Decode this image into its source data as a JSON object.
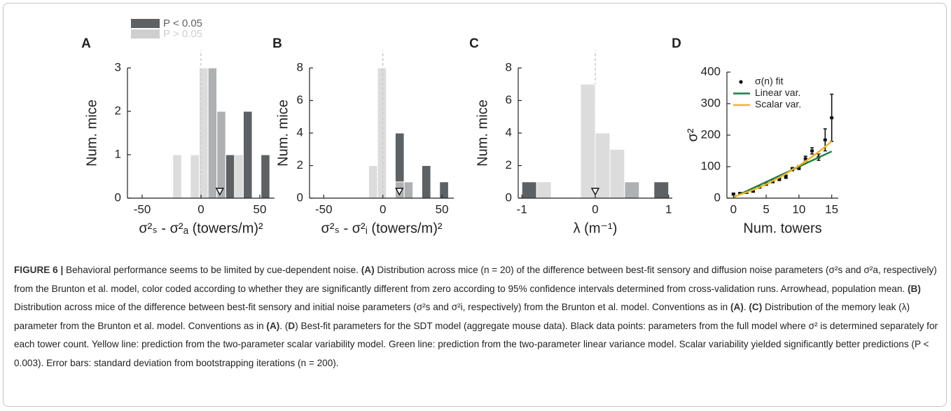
{
  "chart_data": [
    {
      "type": "histogram",
      "label": "A",
      "xlabel": "σ²ₛ - σ²ₐ (towers/m)²",
      "ylabel": "Num. mice",
      "bins": [
        -24,
        -16.5,
        -9,
        -1.5,
        6,
        13.5,
        21,
        28.5,
        36,
        43.5,
        51,
        58.5
      ],
      "series": [
        {
          "name": "P < 0.05",
          "color": "#5e6164",
          "values": [
            0,
            0,
            0,
            0,
            3,
            2,
            1,
            0,
            2,
            0,
            1
          ]
        },
        {
          "name": "P > 0.05",
          "color": "#cfcfcf",
          "values": [
            1,
            0,
            1,
            3,
            3,
            2,
            0,
            1,
            0,
            0,
            0
          ]
        }
      ],
      "xlim": [
        -62.5,
        62.5
      ],
      "xticks": [
        -50,
        0,
        50
      ],
      "ylim": [
        0,
        3
      ],
      "yticks": [
        0,
        1,
        2,
        3
      ],
      "vline": 0,
      "mean": 16,
      "legend": "above"
    },
    {
      "type": "histogram",
      "label": "B",
      "xlabel": "σ²ₛ - σ²ᵢ (towers/m)²",
      "ylabel": "Num. mice",
      "bins": [
        -12,
        -4.5,
        3,
        10.5,
        18,
        25.5,
        33,
        40.5,
        48,
        55.5
      ],
      "series": [
        {
          "color": "#5e6164",
          "values": [
            0,
            0,
            0,
            4,
            1,
            0,
            2,
            0,
            1
          ]
        },
        {
          "color": "#cfcfcf",
          "values": [
            2,
            8,
            0,
            1,
            1,
            0,
            0,
            0,
            0
          ]
        }
      ],
      "xlim": [
        -62,
        60
      ],
      "xticks": [
        -50,
        0,
        50
      ],
      "ylim": [
        0,
        8
      ],
      "yticks": [
        0,
        2,
        4,
        6,
        8
      ],
      "vline": 0,
      "mean": 14
    },
    {
      "type": "histogram",
      "label": "C",
      "xlabel": "λ (m⁻¹)",
      "ylabel": "Num. mice",
      "bins": [
        -1,
        -0.8,
        -0.6,
        -0.4,
        -0.2,
        0,
        0.2,
        0.4,
        0.6,
        0.8,
        1
      ],
      "series": [
        {
          "color": "#5e6164",
          "values": [
            1,
            0,
            0,
            0,
            0,
            0,
            0,
            1,
            0,
            1
          ]
        },
        {
          "color": "#cfcfcf",
          "values": [
            0,
            1,
            0,
            0,
            7,
            4,
            3,
            1,
            0,
            0
          ]
        }
      ],
      "xlim": [
        -1.05,
        1.05
      ],
      "xticks": [
        -1,
        0,
        1
      ],
      "ylim": [
        0,
        8
      ],
      "yticks": [
        0,
        2,
        4,
        6,
        8
      ],
      "vline": 0,
      "mean": 0
    },
    {
      "type": "line",
      "label": "D",
      "xlabel": "Num. towers",
      "ylabel": "σ²",
      "x": [
        0,
        1,
        2,
        3,
        4,
        5,
        6,
        7,
        8,
        9,
        10,
        11,
        12,
        13,
        14,
        15
      ],
      "series": [
        {
          "name": "σ(n) fit",
          "color": "#111111",
          "style": "points",
          "values": [
            13,
            15,
            18,
            22,
            35,
            45,
            53,
            60,
            68,
            92,
            97,
            125,
            150,
            130,
            185,
            255
          ],
          "errors": [
            3,
            3,
            3,
            3,
            3,
            4,
            4,
            4,
            5,
            5,
            6,
            8,
            10,
            10,
            35,
            75
          ]
        },
        {
          "name": "Linear var.",
          "color": "#1b7f3e",
          "style": "line",
          "values": [
            3,
            12.7,
            22.4,
            32.1,
            41.8,
            51.5,
            61.2,
            70.9,
            80.6,
            90.3,
            100,
            109.7,
            119.4,
            129.1,
            138.8,
            148.5
          ]
        },
        {
          "name": "Scalar var.",
          "color": "#f6b420",
          "style": "line",
          "values": [
            5,
            11.4,
            18.5,
            26.4,
            35.1,
            44.5,
            54.7,
            65.6,
            77.3,
            90.8,
            103,
            117,
            131.7,
            147.2,
            163.5,
            180.5
          ]
        }
      ],
      "xlim": [
        -1,
        16
      ],
      "xticks": [
        0,
        5,
        10,
        15
      ],
      "ylim": [
        0,
        400
      ],
      "yticks": [
        0,
        100,
        200,
        300,
        400
      ],
      "legend": "top-left"
    }
  ],
  "caption": {
    "segments": [
      {
        "text": "FIGURE 6 |",
        "bold": true
      },
      {
        "text": " Behavioral performance seems to be limited by cue-dependent noise. "
      },
      {
        "text": "(A)",
        "bold": true
      },
      {
        "text": " Distribution across mice (n = 20) of the difference between best-fit sensory and diffusion noise parameters (σ²s and σ²a, respectively) from the Brunton et al. model, color coded according to whether they are significantly different from zero according to 95% confidence intervals determined from cross-validation runs. Arrowhead, population mean. "
      },
      {
        "text": "(B)",
        "bold": true
      },
      {
        "text": " Distribution across mice of the difference between best-fit sensory and initial noise parameters (σ²s and σ²i, respectively) from the Brunton et al. model. Conventions as in "
      },
      {
        "text": "(A)",
        "bold": true
      },
      {
        "text": ". "
      },
      {
        "text": "(C)",
        "bold": true
      },
      {
        "text": " Distribution of the memory leak (λ) parameter from the Brunton et al. model. Conventions as in "
      },
      {
        "text": "(A)",
        "bold": true
      },
      {
        "text": ". ("
      },
      {
        "text": "D",
        "bold": true
      },
      {
        "text": ") Best-fit parameters for the SDT model (aggregate mouse data). Black data points: parameters from the full model where σ² is determined separately for each tower count. Yellow line: prediction from the two-parameter scalar variability model. Green line: prediction from the two-parameter linear variance model. Scalar variability yielded significantly better predictions (P < 0.003). Error bars: standard deviation from bootstrapping iterations (n = 200)."
      }
    ]
  }
}
